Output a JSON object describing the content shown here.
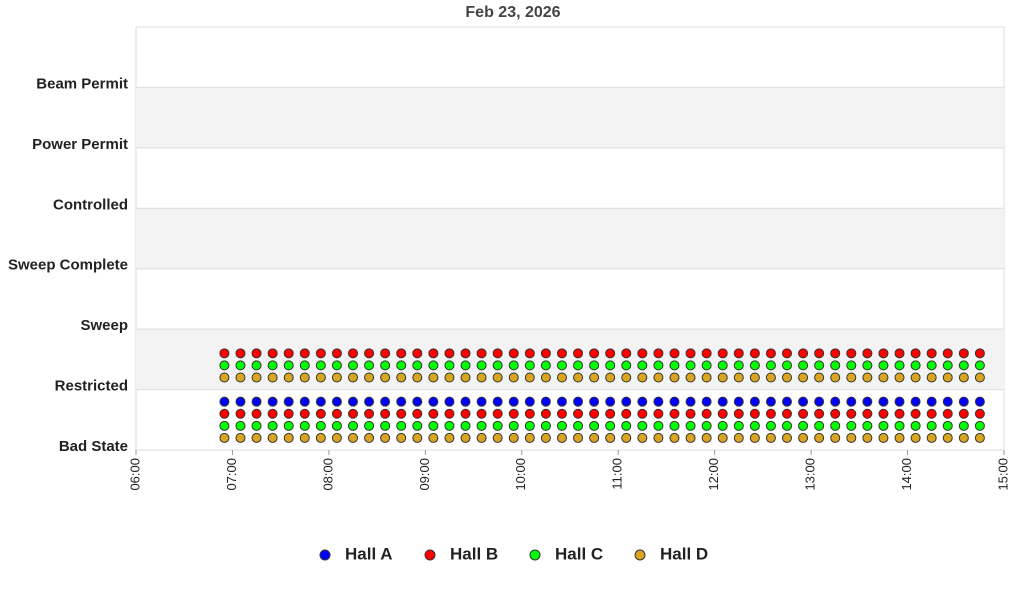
{
  "chart_data": {
    "type": "scatter",
    "title": "Feb 23, 2026",
    "xlim": [
      360,
      900
    ],
    "xticks": [
      {
        "value": 360,
        "label": "06:00"
      },
      {
        "value": 420,
        "label": "07:00"
      },
      {
        "value": 480,
        "label": "08:00"
      },
      {
        "value": 540,
        "label": "09:00"
      },
      {
        "value": 600,
        "label": "10:00"
      },
      {
        "value": 660,
        "label": "11:00"
      },
      {
        "value": 720,
        "label": "12:00"
      },
      {
        "value": 780,
        "label": "13:00"
      },
      {
        "value": 840,
        "label": "14:00"
      },
      {
        "value": 900,
        "label": "15:00"
      }
    ],
    "ylim": [
      0,
      7
    ],
    "yticks": [
      {
        "value": 0,
        "label": "Bad State"
      },
      {
        "value": 1,
        "label": "Restricted"
      },
      {
        "value": 2,
        "label": "Sweep"
      },
      {
        "value": 3,
        "label": "Sweep Complete"
      },
      {
        "value": 4,
        "label": "Controlled"
      },
      {
        "value": 5,
        "label": "Power Permit"
      },
      {
        "value": 6,
        "label": "Beam Permit"
      }
    ],
    "grid": true,
    "legend": "bottom",
    "series": [
      {
        "name": "Hall A",
        "color": "#0000ff",
        "x": [
          415,
          425,
          435,
          445,
          455,
          465,
          475,
          485,
          495,
          505,
          515,
          525,
          535,
          545,
          555,
          565,
          575,
          585,
          595,
          605,
          615,
          625,
          635,
          645,
          655,
          665,
          675,
          685,
          695,
          705,
          715,
          725,
          735,
          745,
          755,
          765,
          775,
          785,
          795,
          805,
          815,
          825,
          835,
          845,
          855,
          865,
          875,
          885
        ],
        "values": [
          0.8,
          0.8,
          0.8,
          0.8,
          0.8,
          0.8,
          0.8,
          0.8,
          0.8,
          0.8,
          0.8,
          0.8,
          0.8,
          0.8,
          0.8,
          0.8,
          0.8,
          0.8,
          0.8,
          0.8,
          0.8,
          0.8,
          0.8,
          0.8,
          0.8,
          0.8,
          0.8,
          0.8,
          0.8,
          0.8,
          0.8,
          0.8,
          0.8,
          0.8,
          0.8,
          0.8,
          0.8,
          0.8,
          0.8,
          0.8,
          0.8,
          0.8,
          0.8,
          0.8,
          0.8,
          0.8,
          0.8,
          0.8
        ]
      },
      {
        "name": "Hall B",
        "color": "#ff0000",
        "x": [
          415,
          425,
          435,
          445,
          455,
          465,
          475,
          485,
          495,
          505,
          515,
          525,
          535,
          545,
          555,
          565,
          575,
          585,
          595,
          605,
          615,
          625,
          635,
          645,
          655,
          665,
          675,
          685,
          695,
          705,
          715,
          725,
          735,
          745,
          755,
          765,
          775,
          785,
          795,
          805,
          815,
          825,
          835,
          845,
          855,
          865,
          875,
          885,
          415,
          425,
          435,
          445,
          455,
          465,
          475,
          485,
          495,
          505,
          515,
          525,
          535,
          545,
          555,
          565,
          575,
          585,
          595,
          605,
          615,
          625,
          635,
          645,
          655,
          665,
          675,
          685,
          695,
          705,
          715,
          725,
          735,
          745,
          755,
          765,
          775,
          785,
          795,
          805,
          815,
          825,
          835,
          845,
          855,
          865,
          875,
          885
        ],
        "values": [
          1.6,
          1.6,
          1.6,
          1.6,
          1.6,
          1.6,
          1.6,
          1.6,
          1.6,
          1.6,
          1.6,
          1.6,
          1.6,
          1.6,
          1.6,
          1.6,
          1.6,
          1.6,
          1.6,
          1.6,
          1.6,
          1.6,
          1.6,
          1.6,
          1.6,
          1.6,
          1.6,
          1.6,
          1.6,
          1.6,
          1.6,
          1.6,
          1.6,
          1.6,
          1.6,
          1.6,
          1.6,
          1.6,
          1.6,
          1.6,
          1.6,
          1.6,
          1.6,
          1.6,
          1.6,
          1.6,
          1.6,
          1.6,
          0.6,
          0.6,
          0.6,
          0.6,
          0.6,
          0.6,
          0.6,
          0.6,
          0.6,
          0.6,
          0.6,
          0.6,
          0.6,
          0.6,
          0.6,
          0.6,
          0.6,
          0.6,
          0.6,
          0.6,
          0.6,
          0.6,
          0.6,
          0.6,
          0.6,
          0.6,
          0.6,
          0.6,
          0.6,
          0.6,
          0.6,
          0.6,
          0.6,
          0.6,
          0.6,
          0.6,
          0.6,
          0.6,
          0.6,
          0.6,
          0.6,
          0.6,
          0.6,
          0.6,
          0.6,
          0.6,
          0.6,
          0.6
        ]
      },
      {
        "name": "Hall C",
        "color": "#00ff00",
        "x": [
          415,
          425,
          435,
          445,
          455,
          465,
          475,
          485,
          495,
          505,
          515,
          525,
          535,
          545,
          555,
          565,
          575,
          585,
          595,
          605,
          615,
          625,
          635,
          645,
          655,
          665,
          675,
          685,
          695,
          705,
          715,
          725,
          735,
          745,
          755,
          765,
          775,
          785,
          795,
          805,
          815,
          825,
          835,
          845,
          855,
          865,
          875,
          885,
          415,
          425,
          435,
          445,
          455,
          465,
          475,
          485,
          495,
          505,
          515,
          525,
          535,
          545,
          555,
          565,
          575,
          585,
          595,
          605,
          615,
          625,
          635,
          645,
          655,
          665,
          675,
          685,
          695,
          705,
          715,
          725,
          735,
          745,
          755,
          765,
          775,
          785,
          795,
          805,
          815,
          825,
          835,
          845,
          855,
          865,
          875,
          885
        ],
        "values": [
          1.4,
          1.4,
          1.4,
          1.4,
          1.4,
          1.4,
          1.4,
          1.4,
          1.4,
          1.4,
          1.4,
          1.4,
          1.4,
          1.4,
          1.4,
          1.4,
          1.4,
          1.4,
          1.4,
          1.4,
          1.4,
          1.4,
          1.4,
          1.4,
          1.4,
          1.4,
          1.4,
          1.4,
          1.4,
          1.4,
          1.4,
          1.4,
          1.4,
          1.4,
          1.4,
          1.4,
          1.4,
          1.4,
          1.4,
          1.4,
          1.4,
          1.4,
          1.4,
          1.4,
          1.4,
          1.4,
          1.4,
          1.4,
          0.4,
          0.4,
          0.4,
          0.4,
          0.4,
          0.4,
          0.4,
          0.4,
          0.4,
          0.4,
          0.4,
          0.4,
          0.4,
          0.4,
          0.4,
          0.4,
          0.4,
          0.4,
          0.4,
          0.4,
          0.4,
          0.4,
          0.4,
          0.4,
          0.4,
          0.4,
          0.4,
          0.4,
          0.4,
          0.4,
          0.4,
          0.4,
          0.4,
          0.4,
          0.4,
          0.4,
          0.4,
          0.4,
          0.4,
          0.4,
          0.4,
          0.4,
          0.4,
          0.4,
          0.4,
          0.4,
          0.4,
          0.4
        ]
      },
      {
        "name": "Hall D",
        "color": "#daa520",
        "x": [
          415,
          425,
          435,
          445,
          455,
          465,
          475,
          485,
          495,
          505,
          515,
          525,
          535,
          545,
          555,
          565,
          575,
          585,
          595,
          605,
          615,
          625,
          635,
          645,
          655,
          665,
          675,
          685,
          695,
          705,
          715,
          725,
          735,
          745,
          755,
          765,
          775,
          785,
          795,
          805,
          815,
          825,
          835,
          845,
          855,
          865,
          875,
          885,
          415,
          425,
          435,
          445,
          455,
          465,
          475,
          485,
          495,
          505,
          515,
          525,
          535,
          545,
          555,
          565,
          575,
          585,
          595,
          605,
          615,
          625,
          635,
          645,
          655,
          665,
          675,
          685,
          695,
          705,
          715,
          725,
          735,
          745,
          755,
          765,
          775,
          785,
          795,
          805,
          815,
          825,
          835,
          845,
          855,
          865,
          875,
          885
        ],
        "values": [
          1.2,
          1.2,
          1.2,
          1.2,
          1.2,
          1.2,
          1.2,
          1.2,
          1.2,
          1.2,
          1.2,
          1.2,
          1.2,
          1.2,
          1.2,
          1.2,
          1.2,
          1.2,
          1.2,
          1.2,
          1.2,
          1.2,
          1.2,
          1.2,
          1.2,
          1.2,
          1.2,
          1.2,
          1.2,
          1.2,
          1.2,
          1.2,
          1.2,
          1.2,
          1.2,
          1.2,
          1.2,
          1.2,
          1.2,
          1.2,
          1.2,
          1.2,
          1.2,
          1.2,
          1.2,
          1.2,
          1.2,
          1.2,
          0.2,
          0.2,
          0.2,
          0.2,
          0.2,
          0.2,
          0.2,
          0.2,
          0.2,
          0.2,
          0.2,
          0.2,
          0.2,
          0.2,
          0.2,
          0.2,
          0.2,
          0.2,
          0.2,
          0.2,
          0.2,
          0.2,
          0.2,
          0.2,
          0.2,
          0.2,
          0.2,
          0.2,
          0.2,
          0.2,
          0.2,
          0.2,
          0.2,
          0.2,
          0.2,
          0.2,
          0.2,
          0.2,
          0.2,
          0.2,
          0.2,
          0.2,
          0.2,
          0.2,
          0.2,
          0.2,
          0.2,
          0.2
        ]
      }
    ]
  }
}
